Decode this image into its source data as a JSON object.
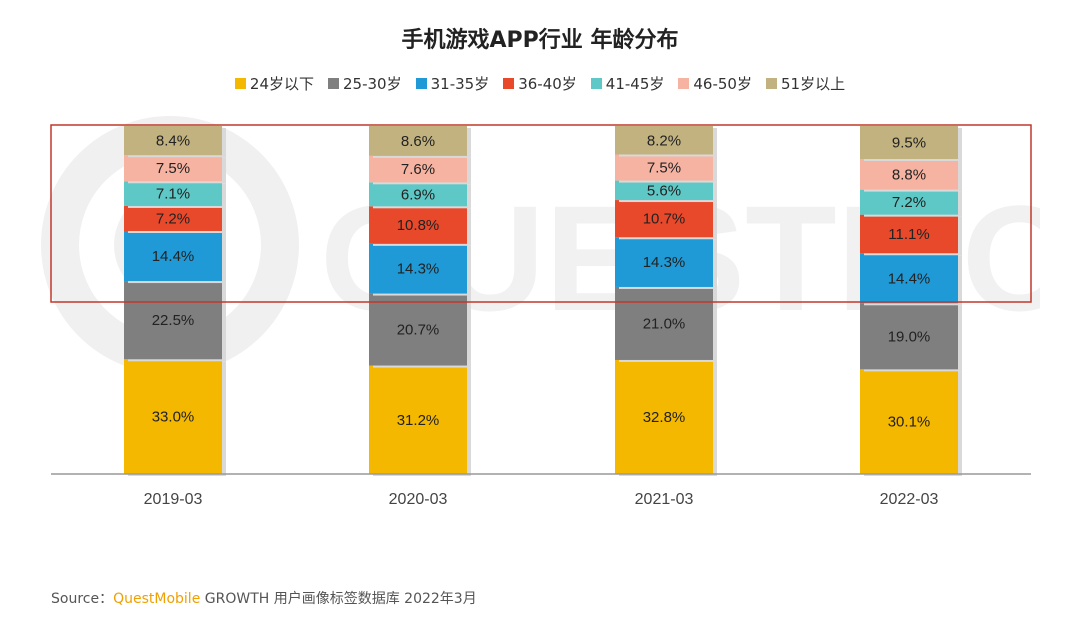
{
  "source": {
    "prefix": "Source：",
    "brand": "QuestMobile",
    "suffix": " GROWTH 用户画像标签数据库 2022年3月"
  },
  "watermark": {
    "text": "QUESTMOBILE"
  },
  "chart_data": {
    "type": "bar",
    "stacked": true,
    "title": "手机游戏APP行业 年龄分布",
    "xlabel": "",
    "ylabel": "",
    "ylim": [
      0,
      100
    ],
    "categories": [
      "2019-03",
      "2020-03",
      "2021-03",
      "2022-03"
    ],
    "legend_position": "top",
    "grid": false,
    "highlight_box": "rectangle around the 31-35岁 to 51岁以上 segments",
    "series": [
      {
        "name": "24岁以下",
        "color": "#f5b800",
        "values": [
          33.0,
          31.2,
          32.8,
          30.1
        ],
        "labels": [
          "33.0%",
          "31.2%",
          "32.8%",
          "30.1%"
        ]
      },
      {
        "name": "25-30岁",
        "color": "#7f7f7f",
        "values": [
          22.5,
          20.7,
          21.0,
          19.0
        ],
        "labels": [
          "22.5%",
          "20.7%",
          "21.0%",
          "19.0%"
        ]
      },
      {
        "name": "31-35岁",
        "color": "#1f9ad6",
        "values": [
          14.4,
          14.3,
          14.3,
          14.4
        ],
        "labels": [
          "14.4%",
          "14.3%",
          "14.3%",
          "14.4%"
        ]
      },
      {
        "name": "36-40岁",
        "color": "#e8492b",
        "values": [
          7.2,
          10.8,
          10.7,
          11.1
        ],
        "labels": [
          "7.2%",
          "10.8%",
          "10.7%",
          "11.1%"
        ]
      },
      {
        "name": "41-45岁",
        "color": "#5dc8c6",
        "values": [
          7.1,
          6.9,
          5.6,
          7.2
        ],
        "labels": [
          "7.1%",
          "6.9%",
          "5.6%",
          "7.2%"
        ]
      },
      {
        "name": "46-50岁",
        "color": "#f6b3a1",
        "values": [
          7.5,
          7.6,
          7.5,
          8.8
        ],
        "labels": [
          "7.5%",
          "7.6%",
          "7.5%",
          "8.8%"
        ]
      },
      {
        "name": "51岁以上",
        "color": "#c2b280",
        "values": [
          8.4,
          8.6,
          8.2,
          9.5
        ],
        "labels": [
          "8.4%",
          "8.6%",
          "8.2%",
          "9.5%"
        ]
      }
    ]
  }
}
